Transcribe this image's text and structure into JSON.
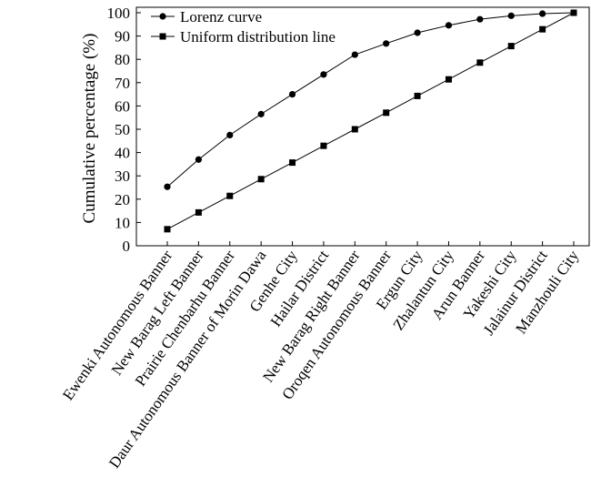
{
  "chart_data": {
    "type": "line",
    "title": "",
    "xlabel": "",
    "ylabel": "Cumulative percentage (%)",
    "ylim": [
      0,
      100
    ],
    "yticks": [
      0,
      10,
      20,
      30,
      40,
      50,
      60,
      70,
      80,
      90,
      100
    ],
    "grid": false,
    "legend_position": "top-left",
    "categories": [
      "Ewenki Autonomous Banner",
      "New Barag Left Banner",
      "Prairie Chenbarhu Banner",
      "Daur Autonomous Banner of Morin Dawa",
      "Genhe City",
      "Hailar District",
      "New Barag Right Banner",
      "Oroqen Autonomous Banner",
      "Ergun City",
      "Zhalantun City",
      "Arun Banner",
      "Yakeshi City",
      "Jalainur District",
      "Manzhouli City"
    ],
    "series": [
      {
        "name": "Lorenz curve",
        "marker": "circle",
        "values": [
          25.3,
          37,
          47.5,
          56.5,
          65,
          73.5,
          82,
          86.8,
          91.4,
          94.6,
          97.2,
          98.7,
          99.6,
          100
        ]
      },
      {
        "name": "Uniform distribution line",
        "marker": "square",
        "values": [
          7.1,
          14.3,
          21.4,
          28.6,
          35.7,
          42.9,
          50,
          57.1,
          64.3,
          71.4,
          78.6,
          85.7,
          92.9,
          100
        ]
      }
    ]
  }
}
